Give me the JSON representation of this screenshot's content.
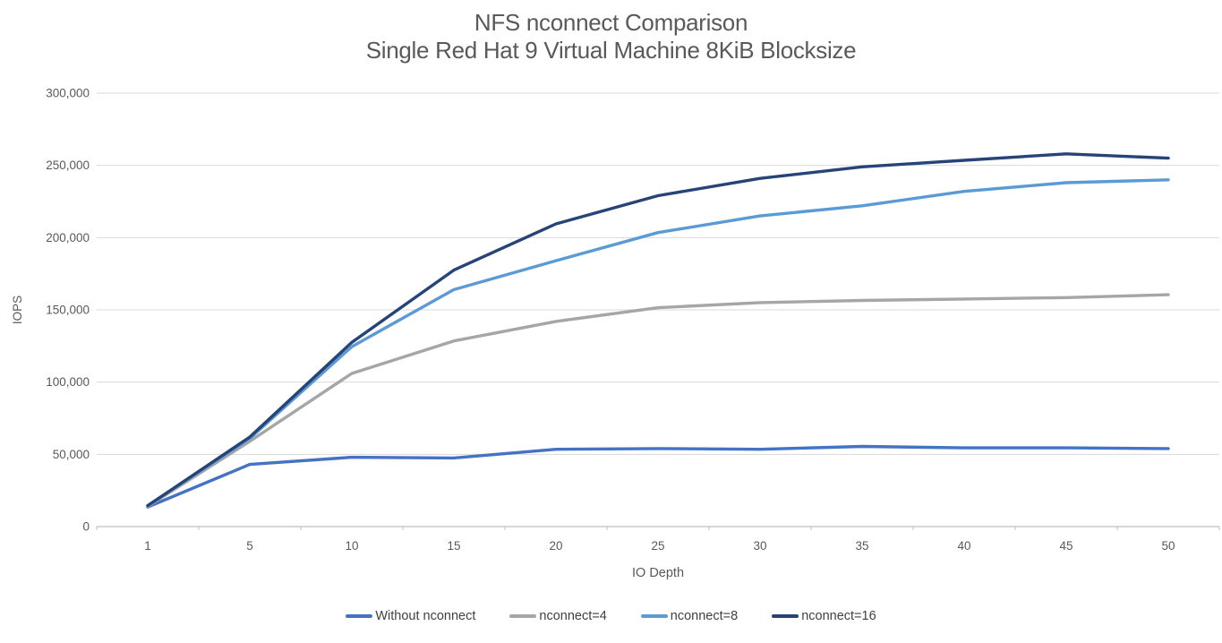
{
  "chart_data": {
    "type": "line",
    "title_line1": "NFS nconnect Comparison",
    "title_line2": "Single Red Hat 9 Virtual Machine 8KiB Blocksize",
    "xlabel": "IO Depth",
    "ylabel": "IOPS",
    "categories": [
      "1",
      "5",
      "10",
      "15",
      "20",
      "25",
      "30",
      "35",
      "40",
      "45",
      "50"
    ],
    "y_ticks": [
      0,
      50000,
      100000,
      150000,
      200000,
      250000,
      300000
    ],
    "y_tick_labels": [
      "0",
      "50,000",
      "100,000",
      "150,000",
      "200,000",
      "250,000",
      "300,000"
    ],
    "ylim": [
      0,
      300000
    ],
    "grid": true,
    "legend_position": "bottom",
    "series": [
      {
        "name": "Without nconnect",
        "color": "#4472C4",
        "values": [
          13500,
          43000,
          48000,
          47500,
          53500,
          54000,
          53500,
          55500,
          54500,
          54500,
          54000
        ]
      },
      {
        "name": "nconnect=4",
        "color": "#A6A6A6",
        "values": [
          14000,
          59000,
          106000,
          128500,
          142000,
          151500,
          155000,
          156500,
          157500,
          158500,
          160500
        ]
      },
      {
        "name": "nconnect=8",
        "color": "#5B9BD5",
        "values": [
          14500,
          61000,
          124500,
          164000,
          184000,
          203500,
          215000,
          222000,
          232000,
          238000,
          240000
        ]
      },
      {
        "name": "nconnect=16",
        "color": "#264478",
        "values": [
          14500,
          62000,
          127500,
          177500,
          209500,
          229000,
          241000,
          249000,
          253500,
          258000,
          255000
        ]
      }
    ],
    "colors": {
      "title_text": "#595959",
      "axis_text": "#595959",
      "gridline": "#D9D9D9",
      "axis_line": "#BFBFBF"
    }
  }
}
